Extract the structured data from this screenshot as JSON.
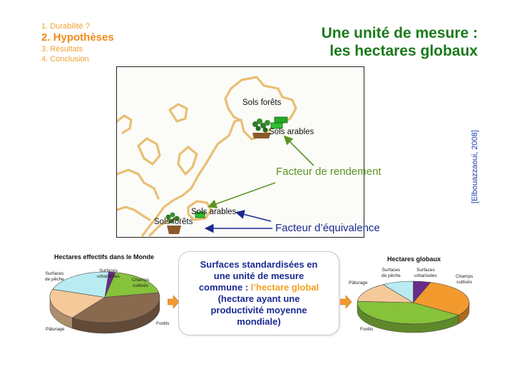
{
  "outline": {
    "items": [
      "1. Durabilité ?",
      "2. Hypothèses",
      "3. Résultats",
      "4. Conclusion"
    ]
  },
  "title": {
    "line1": "Une unité de mesure :",
    "line2": "les hectares globaux"
  },
  "map": {
    "label_forest_top": "Sols forêts",
    "label_arable_top": "Sols arables",
    "label_arable_bottom": "Sols arables",
    "label_forest_bottom": "Sols forêts"
  },
  "annotations": {
    "rendement": "Facteur de rendement",
    "equivalence": "Facteur d’équivalence"
  },
  "citation": "[Elbouazzaoui, 2008]",
  "center": {
    "line1": "Surfaces standardisées en",
    "line2": "une unité de mesure",
    "line3_prefix": "commune : ",
    "line3_highlight": "l’hectare global",
    "line4": "(hectare ayant une",
    "line5": "productivité moyenne",
    "line6": "mondiale)"
  },
  "chart_data": [
    {
      "type": "pie",
      "title": "Hectares effectifs dans le Monde",
      "labels": [
        "Surfaces urbanisées",
        "Champs cultivés",
        "Forêts",
        "Pâturage",
        "Surfaces de pêche"
      ],
      "values": [
        2,
        19,
        38,
        20,
        21
      ],
      "colors": [
        "#6a2b8a",
        "#86c23a",
        "#8a6a4e",
        "#f6c99a",
        "#b9ecf2"
      ]
    },
    {
      "type": "pie",
      "title": "Hectares globaux",
      "labels": [
        "Surfaces urbanisées",
        "Champs cultivés",
        "Forêts",
        "Pâturage",
        "Surfaces de pêche"
      ],
      "values": [
        5,
        30,
        41,
        15,
        9
      ],
      "colors": [
        "#6a2b8a",
        "#f39a2e",
        "#86c23a",
        "#f6c99a",
        "#b9ecf2"
      ]
    }
  ]
}
